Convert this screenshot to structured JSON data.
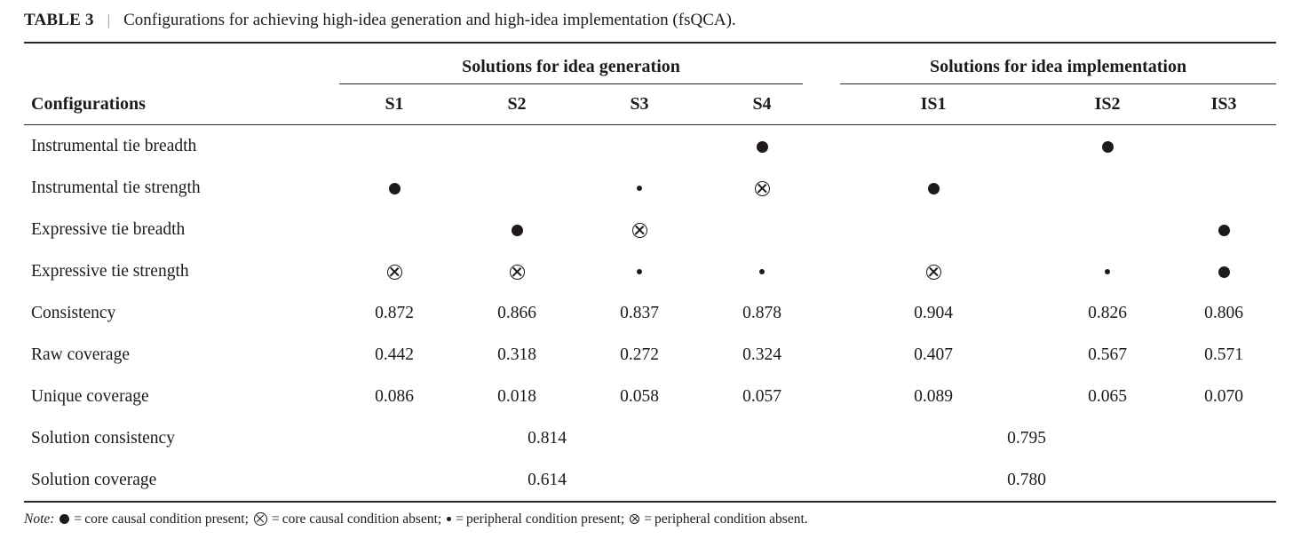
{
  "caption": {
    "label": "TABLE 3",
    "separator": "|",
    "text": "Configurations for achieving high-idea generation and high-idea implementation (fsQCA)."
  },
  "table": {
    "row_header": "Configurations",
    "group_headers": [
      "Solutions for idea generation",
      "Solutions for idea implementation"
    ],
    "columns": [
      "S1",
      "S2",
      "S3",
      "S4",
      "IS1",
      "IS2",
      "IS3"
    ],
    "rows": [
      {
        "label": "Instrumental tie breadth",
        "type": "symbols",
        "cells": [
          "",
          "",
          "",
          "core-present",
          "",
          "core-present",
          ""
        ]
      },
      {
        "label": "Instrumental tie strength",
        "type": "symbols",
        "cells": [
          "core-present",
          "",
          "peripheral-present",
          "core-absent",
          "core-present",
          "",
          ""
        ]
      },
      {
        "label": "Expressive tie breadth",
        "type": "symbols",
        "cells": [
          "",
          "core-present",
          "core-absent",
          "",
          "",
          "",
          "core-present"
        ]
      },
      {
        "label": "Expressive tie strength",
        "type": "symbols",
        "cells": [
          "core-absent",
          "core-absent",
          "peripheral-present",
          "peripheral-present",
          "core-absent",
          "peripheral-present",
          "core-present"
        ]
      },
      {
        "label": "Consistency",
        "type": "values",
        "cells": [
          "0.872",
          "0.866",
          "0.837",
          "0.878",
          "0.904",
          "0.826",
          "0.806"
        ]
      },
      {
        "label": "Raw coverage",
        "type": "values",
        "cells": [
          "0.442",
          "0.318",
          "0.272",
          "0.324",
          "0.407",
          "0.567",
          "0.571"
        ]
      },
      {
        "label": "Unique coverage",
        "type": "values",
        "cells": [
          "0.086",
          "0.018",
          "0.058",
          "0.057",
          "0.089",
          "0.065",
          "0.070"
        ]
      },
      {
        "label": "Solution consistency",
        "type": "span-values",
        "cells": [
          "0.814",
          "0.795"
        ]
      },
      {
        "label": "Solution coverage",
        "type": "span-values",
        "cells": [
          "0.614",
          "0.780"
        ]
      }
    ]
  },
  "note": {
    "prefix": "Note:",
    "joiner": "=",
    "separator": ";",
    "terminator": ".",
    "legend": [
      {
        "symbol": "core-present",
        "meaning": "core causal condition present"
      },
      {
        "symbol": "core-absent",
        "meaning": "core causal condition absent"
      },
      {
        "symbol": "peripheral-present",
        "meaning": "peripheral condition present"
      },
      {
        "symbol": "peripheral-absent",
        "meaning": "peripheral condition absent"
      }
    ]
  },
  "symbols": {
    "core-present": "●",
    "core-absent": "⊗",
    "peripheral-present": "•",
    "peripheral-absent": "⊗"
  },
  "colors": {
    "text": "#1e1a1a",
    "rule": "#2a2626",
    "background": "#ffffff"
  }
}
